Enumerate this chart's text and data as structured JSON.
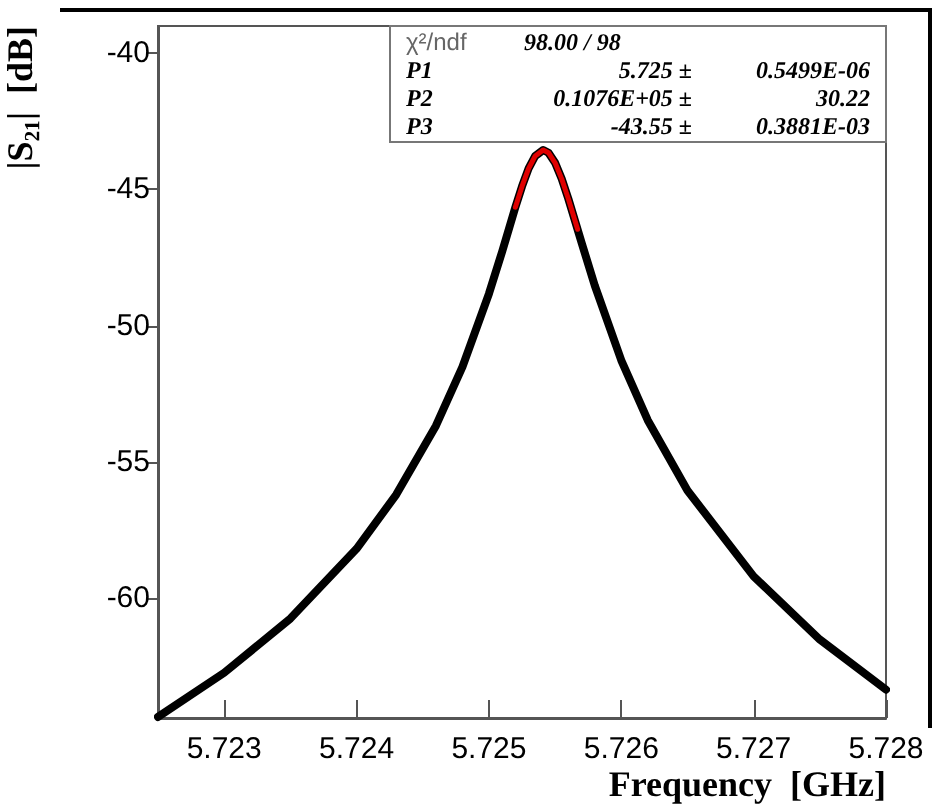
{
  "chart_data": {
    "type": "line",
    "xlabel": "Frequency  [GHz]",
    "ylabel": "|S₂₁|  [dB]",
    "xlim": [
      5.7225,
      5.728
    ],
    "xticks": [
      5.723,
      5.724,
      5.725,
      5.726,
      5.727,
      5.728
    ],
    "ylim": [
      -64.4,
      -39
    ],
    "yticks": [
      -40,
      -45,
      -50,
      -55,
      -60
    ],
    "grid": false,
    "marker": "none",
    "line_style": "solid",
    "annotations": [
      "χ²/ndf  98.00 / 98",
      "P1  5.725 ±  0.5499E-06",
      "P2  0.1076E+05 ±  30.22",
      "P3  -43.55 ±  0.3881E-03"
    ],
    "series": [
      {
        "color": "#000000",
        "x": [
          5.7225,
          5.723,
          5.7235,
          5.724,
          5.7243,
          5.7246,
          5.7248,
          5.725,
          5.7251,
          5.7252,
          5.72525,
          5.7253,
          5.72535,
          5.72541,
          5.72545,
          5.7255,
          5.72555,
          5.7256,
          5.7257,
          5.7258,
          5.726,
          5.7262,
          5.7265,
          5.727,
          5.7275,
          5.728
        ],
        "values": [
          -64.36,
          -62.74,
          -60.75,
          -58.19,
          -56.2,
          -53.67,
          -51.51,
          -48.83,
          -47.28,
          -45.65,
          -44.89,
          -44.23,
          -43.77,
          -43.55,
          -43.65,
          -44.02,
          -44.61,
          -45.34,
          -46.95,
          -48.53,
          -51.27,
          -53.47,
          -56.05,
          -59.2,
          -61.52,
          -63.36
        ]
      },
      {
        "color": "#e00000",
        "x": [
          5.7252,
          5.72525,
          5.7253,
          5.72535,
          5.72541,
          5.72545,
          5.7255,
          5.72555,
          5.7256,
          5.72567
        ],
        "values": [
          -45.65,
          -44.89,
          -44.23,
          -43.77,
          -43.55,
          -43.65,
          -44.02,
          -44.61,
          -45.34,
          -46.46
        ]
      }
    ]
  }
}
